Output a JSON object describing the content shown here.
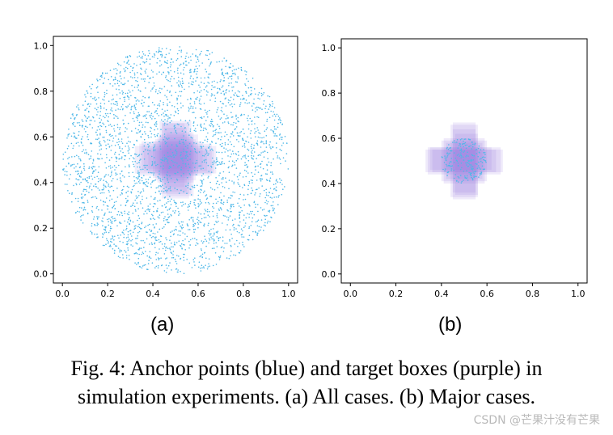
{
  "figure": {
    "panel_labels": [
      "(a)",
      "(b)"
    ],
    "caption_line1": "Fig. 4: Anchor points (blue) and target boxes (purple) in",
    "caption_line2": "simulation experiments. (a) All cases. (b) Major cases.",
    "watermark": "CSDN @芒果汁没有芒果"
  },
  "chart_data": [
    {
      "type": "scatter",
      "panel": "(a)",
      "title": "",
      "xlabel": "",
      "ylabel": "",
      "xlim": [
        -0.04,
        1.04
      ],
      "ylim": [
        -0.04,
        1.04
      ],
      "xticks": [
        "0.0",
        "0.2",
        "0.4",
        "0.6",
        "0.8",
        "1.0"
      ],
      "yticks": [
        "0.0",
        "0.2",
        "0.4",
        "0.6",
        "0.8",
        "1.0"
      ],
      "grid": false,
      "anchor_points": {
        "distribution": "uniform-disk",
        "center": [
          0.5,
          0.5
        ],
        "radius": 0.5,
        "count": 3000,
        "color": "#4fb8e8"
      },
      "target_boxes": {
        "color": "#9b7fe0",
        "opacity": 0.14,
        "boxes": [
          {
            "xmin": 0.32,
            "xmax": 0.68,
            "ymin": 0.44,
            "ymax": 0.56
          },
          {
            "xmin": 0.34,
            "xmax": 0.66,
            "ymin": 0.43,
            "ymax": 0.57
          },
          {
            "xmin": 0.36,
            "xmax": 0.64,
            "ymin": 0.45,
            "ymax": 0.55
          },
          {
            "xmin": 0.35,
            "xmax": 0.62,
            "ymin": 0.46,
            "ymax": 0.58
          },
          {
            "xmin": 0.38,
            "xmax": 0.67,
            "ymin": 0.44,
            "ymax": 0.54
          },
          {
            "xmin": 0.44,
            "xmax": 0.56,
            "ymin": 0.33,
            "ymax": 0.66
          },
          {
            "xmin": 0.43,
            "xmax": 0.57,
            "ymin": 0.35,
            "ymax": 0.67
          },
          {
            "xmin": 0.45,
            "xmax": 0.55,
            "ymin": 0.36,
            "ymax": 0.64
          },
          {
            "xmin": 0.46,
            "xmax": 0.58,
            "ymin": 0.34,
            "ymax": 0.62
          },
          {
            "xmin": 0.44,
            "xmax": 0.54,
            "ymin": 0.38,
            "ymax": 0.66
          },
          {
            "xmin": 0.41,
            "xmax": 0.59,
            "ymin": 0.41,
            "ymax": 0.59
          },
          {
            "xmin": 0.42,
            "xmax": 0.58,
            "ymin": 0.4,
            "ymax": 0.6
          },
          {
            "xmin": 0.4,
            "xmax": 0.57,
            "ymin": 0.42,
            "ymax": 0.58
          },
          {
            "xmin": 0.43,
            "xmax": 0.6,
            "ymin": 0.43,
            "ymax": 0.61
          }
        ]
      }
    },
    {
      "type": "scatter",
      "panel": "(b)",
      "title": "",
      "xlabel": "",
      "ylabel": "",
      "xlim": [
        -0.04,
        1.04
      ],
      "ylim": [
        -0.04,
        1.04
      ],
      "xticks": [
        "0.0",
        "0.2",
        "0.4",
        "0.6",
        "0.8",
        "1.0"
      ],
      "yticks": [
        "0.0",
        "0.2",
        "0.4",
        "0.6",
        "0.8",
        "1.0"
      ],
      "grid": false,
      "anchor_points": {
        "distribution": "uniform-disk",
        "center": [
          0.5,
          0.5
        ],
        "radius": 0.1,
        "count": 220,
        "color": "#4fb8e8"
      },
      "target_boxes": {
        "color": "#9b7fe0",
        "opacity": 0.16,
        "boxes": [
          {
            "xmin": 0.33,
            "xmax": 0.67,
            "ymin": 0.45,
            "ymax": 0.55
          },
          {
            "xmin": 0.34,
            "xmax": 0.66,
            "ymin": 0.44,
            "ymax": 0.56
          },
          {
            "xmin": 0.36,
            "xmax": 0.64,
            "ymin": 0.45,
            "ymax": 0.55
          },
          {
            "xmin": 0.35,
            "xmax": 0.62,
            "ymin": 0.46,
            "ymax": 0.56
          },
          {
            "xmin": 0.45,
            "xmax": 0.55,
            "ymin": 0.33,
            "ymax": 0.67
          },
          {
            "xmin": 0.44,
            "xmax": 0.56,
            "ymin": 0.34,
            "ymax": 0.66
          },
          {
            "xmin": 0.45,
            "xmax": 0.55,
            "ymin": 0.36,
            "ymax": 0.64
          },
          {
            "xmin": 0.46,
            "xmax": 0.56,
            "ymin": 0.35,
            "ymax": 0.62
          },
          {
            "xmin": 0.4,
            "xmax": 0.6,
            "ymin": 0.41,
            "ymax": 0.59
          },
          {
            "xmin": 0.41,
            "xmax": 0.59,
            "ymin": 0.4,
            "ymax": 0.6
          },
          {
            "xmin": 0.42,
            "xmax": 0.58,
            "ymin": 0.42,
            "ymax": 0.58
          }
        ]
      }
    }
  ]
}
